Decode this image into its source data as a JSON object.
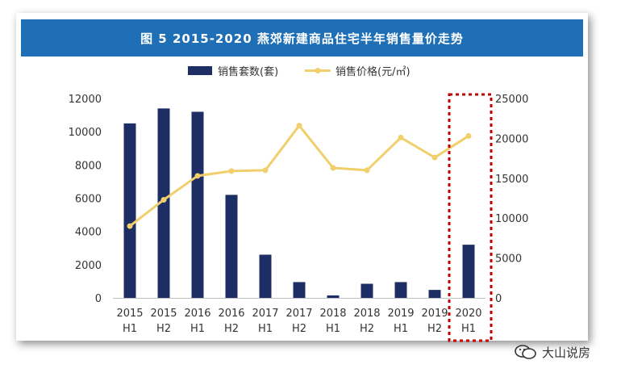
{
  "figure_title": "图 5   2015-2020 燕郊新建商品住宅半年销售量价走势",
  "watermark": "大山说房",
  "colors": {
    "bar": "#1c2e63",
    "line": "#f0cf6c",
    "banner": "#1f6fb6",
    "highlight": "#c00000"
  },
  "chart_data": {
    "type": "bar+line",
    "categories": [
      [
        "2015",
        "H1"
      ],
      [
        "2015",
        "H2"
      ],
      [
        "2016",
        "H1"
      ],
      [
        "2016",
        "H2"
      ],
      [
        "2017",
        "H1"
      ],
      [
        "2017",
        "H2"
      ],
      [
        "2018",
        "H1"
      ],
      [
        "2018",
        "H2"
      ],
      [
        "2019",
        "H1"
      ],
      [
        "2019",
        "H2"
      ],
      [
        "2020",
        "H1"
      ]
    ],
    "series": [
      {
        "name": "销售套数(套)",
        "type": "bar",
        "axis": "left",
        "values": [
          10500,
          11400,
          11200,
          6200,
          2600,
          950,
          150,
          850,
          950,
          480,
          3200
        ]
      },
      {
        "name": "销售价格(元/㎡)",
        "type": "line",
        "axis": "right",
        "values": [
          9000,
          12300,
          15300,
          15900,
          16000,
          21600,
          16300,
          16000,
          20100,
          17600,
          20300
        ]
      }
    ],
    "left_axis": {
      "min": 0,
      "max": 12000,
      "ticks": [
        0,
        2000,
        4000,
        6000,
        8000,
        10000,
        12000
      ]
    },
    "right_axis": {
      "min": 0,
      "max": 25000,
      "ticks": [
        0,
        5000,
        10000,
        15000,
        20000,
        25000
      ]
    },
    "legend_position": "top-center",
    "grid": false,
    "highlight_category": [
      "2020",
      "H1"
    ]
  }
}
